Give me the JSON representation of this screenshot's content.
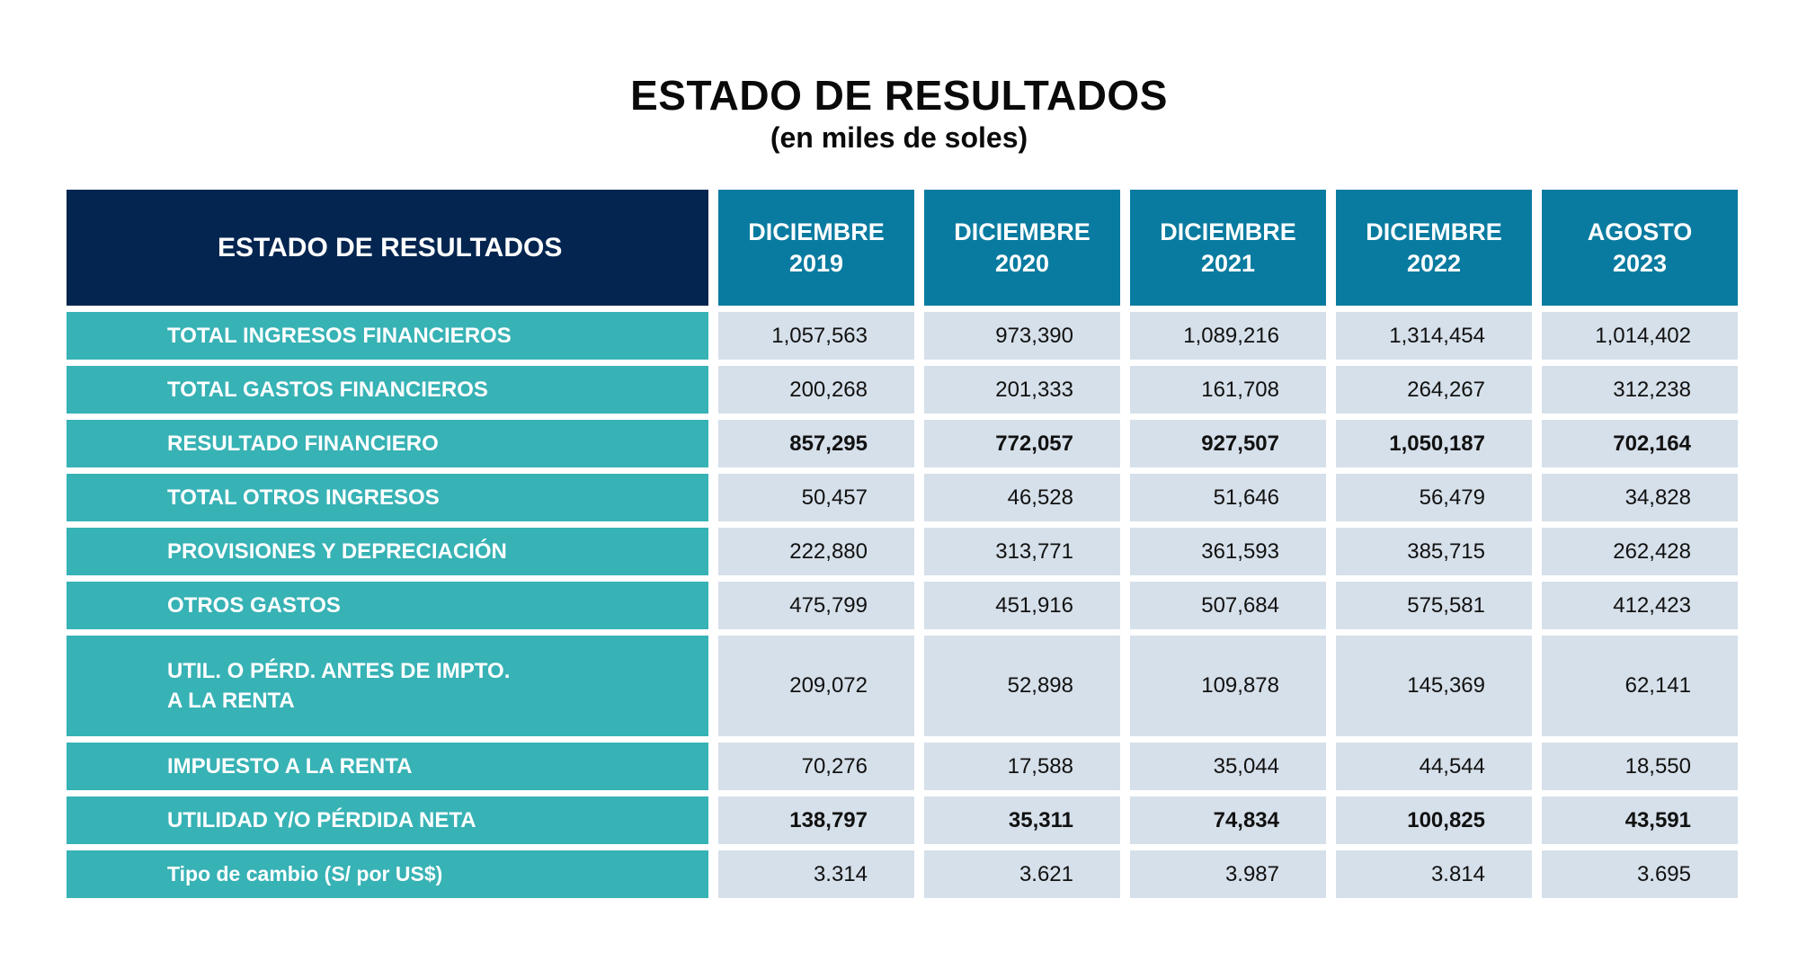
{
  "title": "ESTADO DE RESULTADOS",
  "subtitle": "(en miles de soles)",
  "table": {
    "header_label": "ESTADO DE RESULTADOS",
    "columns": [
      {
        "line1": "DICIEMBRE",
        "line2": "2019"
      },
      {
        "line1": "DICIEMBRE",
        "line2": "2020"
      },
      {
        "line1": "DICIEMBRE",
        "line2": "2021"
      },
      {
        "line1": "DICIEMBRE",
        "line2": "2022"
      },
      {
        "line1": "AGOSTO",
        "line2": "2023"
      }
    ],
    "rows": [
      {
        "label": "TOTAL INGRESOS FINANCIEROS",
        "bold": false,
        "values": [
          "1,057,563",
          "973,390",
          "1,089,216",
          "1,314,454",
          "1,014,402"
        ]
      },
      {
        "label": "TOTAL GASTOS FINANCIEROS",
        "bold": false,
        "values": [
          "200,268",
          "201,333",
          "161,708",
          "264,267",
          "312,238"
        ]
      },
      {
        "label": "RESULTADO FINANCIERO",
        "bold": true,
        "values": [
          "857,295",
          "772,057",
          "927,507",
          "1,050,187",
          "702,164"
        ]
      },
      {
        "label": "TOTAL OTROS INGRESOS",
        "bold": false,
        "values": [
          "50,457",
          "46,528",
          "51,646",
          "56,479",
          "34,828"
        ]
      },
      {
        "label": "PROVISIONES Y DEPRECIACIÓN",
        "bold": false,
        "values": [
          "222,880",
          "313,771",
          "361,593",
          "385,715",
          "262,428"
        ]
      },
      {
        "label": "OTROS GASTOS",
        "bold": false,
        "values": [
          "475,799",
          "451,916",
          "507,684",
          "575,581",
          "412,423"
        ]
      },
      {
        "label": "UTIL. O PÉRD. ANTES DE IMPTO.\nA LA RENTA",
        "bold": false,
        "values": [
          "209,072",
          "52,898",
          "109,878",
          "145,369",
          "62,141"
        ]
      },
      {
        "label": "IMPUESTO A LA RENTA",
        "bold": false,
        "values": [
          "70,276",
          "17,588",
          "35,044",
          "44,544",
          "18,550"
        ]
      },
      {
        "label": "UTILIDAD Y/O PÉRDIDA NETA",
        "bold": true,
        "values": [
          "138,797",
          "35,311",
          "74,834",
          "100,825",
          "43,591"
        ]
      },
      {
        "label": "Tipo de cambio (S/ por US$)",
        "bold": false,
        "values": [
          "3.314",
          "3.621",
          "3.987",
          "3.814",
          "3.695"
        ]
      }
    ]
  },
  "colors": {
    "header_dark": "#03254f",
    "header_column": "#0a7ba0",
    "label_bg": "#37b2b5",
    "value_bg": "#d6e0ea"
  }
}
